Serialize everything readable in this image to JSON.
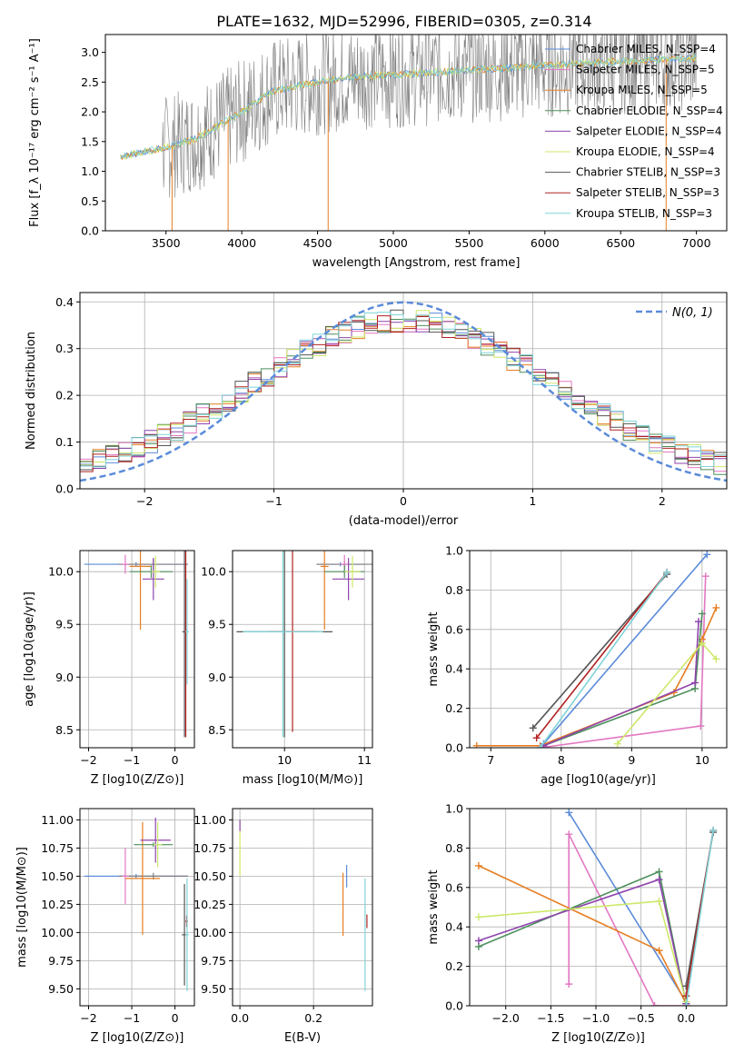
{
  "figure_title": "PLATE=1632, MJD=52996, FIBERID=0305, z=0.314",
  "colors": {
    "grid": "#b0b0b0",
    "gray": "#808080",
    "blue": "#5b8bd9",
    "orange": "#e67e22",
    "green": "#4e8f5d",
    "purple": "#8e44ad",
    "pink": "#e377c2",
    "lime": "#cde86a",
    "darkgray": "#555555",
    "red": "#b22222",
    "cyan": "#7fd3d8"
  },
  "chart_data": [
    {
      "type": "line",
      "name": "spectrum",
      "xlabel": "wavelength [Angstrom, rest frame]",
      "ylabel": "Flux [f_λ 10⁻¹⁷ erg cm⁻² s⁻¹ A⁻¹]",
      "xlim": [
        3100,
        7200
      ],
      "ylim": [
        0,
        3.3
      ],
      "xticks": [
        3500,
        4000,
        4500,
        5000,
        5500,
        6000,
        6500,
        7000
      ],
      "yticks": [
        0.0,
        0.5,
        1.0,
        1.5,
        2.0,
        2.5,
        3.0
      ],
      "data_trend": {
        "x": [
          3200,
          3500,
          3700,
          4000,
          4200,
          4500,
          4800,
          5000,
          5500,
          6000,
          6500,
          7000
        ],
        "y": [
          1.25,
          1.4,
          1.55,
          2.0,
          2.35,
          2.5,
          2.6,
          2.62,
          2.7,
          2.78,
          2.85,
          2.9
        ]
      },
      "legend": [
        {
          "label": "Chabrier MILES, N_SSP=4",
          "color": "blue"
        },
        {
          "label": "Salpeter MILES, N_SSP=5",
          "color": "pink"
        },
        {
          "label": "Kroupa MILES, N_SSP=5",
          "color": "orange"
        },
        {
          "label": "Chabrier ELODIE, N_SSP=4",
          "color": "green"
        },
        {
          "label": "Salpeter ELODIE, N_SSP=4",
          "color": "purple"
        },
        {
          "label": "Kroupa ELODIE, N_SSP=4",
          "color": "lime"
        },
        {
          "label": "Chabrier STELIB, N_SSP=3",
          "color": "darkgray"
        },
        {
          "label": "Salpeter STELIB, N_SSP=3",
          "color": "red"
        },
        {
          "label": "Kroupa STELIB, N_SSP=3",
          "color": "cyan"
        }
      ],
      "legend_position": "right"
    },
    {
      "type": "histogram",
      "name": "residuals",
      "xlabel": "(data-model)/error",
      "ylabel": "Normed distribution",
      "xlim": [
        -2.5,
        2.5
      ],
      "ylim": [
        0,
        0.42
      ],
      "xticks": [
        -2,
        -1,
        0,
        1,
        2
      ],
      "yticks": [
        0.0,
        0.1,
        0.2,
        0.3,
        0.4
      ],
      "legend": [
        {
          "label": "N(0, 1)",
          "style": "dashed",
          "color": "blue"
        }
      ],
      "legend_position": "top-right",
      "bin_width": 0.1,
      "gaussian": {
        "mean": 0,
        "sigma": 1
      }
    },
    {
      "type": "scatter",
      "name": "age-vs-Z",
      "xlabel": "Z [log10(Z/Z⊙)]",
      "ylabel": "age [log10(age/yr)]",
      "xlim": [
        -2.2,
        0.45
      ],
      "ylim": [
        8.33,
        10.2
      ],
      "xticks": [
        -2,
        -1,
        0
      ],
      "yticks": [
        8.5,
        9.0,
        9.5,
        10.0
      ],
      "points": [
        {
          "x": -0.9,
          "y": 10.07,
          "xerr": 1.2,
          "yerr": 0.02,
          "c": "blue"
        },
        {
          "x": -0.5,
          "y": 10.07,
          "xerr": 0.8,
          "yerr": 0.05,
          "c": "gray"
        },
        {
          "x": -1.15,
          "y": 10.07,
          "xerr": 0.08,
          "yerr": 0.09,
          "c": "pink"
        },
        {
          "x": -0.8,
          "y": 10.05,
          "xerr": 0.25,
          "yerr": 0.6,
          "c": "orange"
        },
        {
          "x": -0.55,
          "y": 10.0,
          "xerr": 0.5,
          "yerr": 0.06,
          "c": "green"
        },
        {
          "x": -0.5,
          "y": 9.93,
          "xerr": 0.25,
          "yerr": 0.2,
          "c": "purple"
        },
        {
          "x": -0.45,
          "y": 10.0,
          "xerr": 0.1,
          "yerr": 0.15,
          "c": "lime"
        },
        {
          "x": 0.22,
          "y": 9.43,
          "xerr": 0.05,
          "yerr": 1.0,
          "c": "darkgray"
        },
        {
          "x": 0.25,
          "y": 9.43,
          "xerr": 0.03,
          "yerr": 1.0,
          "c": "red"
        },
        {
          "x": 0.28,
          "y": 9.43,
          "xerr": 0.04,
          "yerr": 0.5,
          "c": "cyan"
        }
      ]
    },
    {
      "type": "scatter",
      "name": "age-vs-mass",
      "xlabel": "mass [log10(M/M⊙)]",
      "ylabel": "",
      "xlim": [
        9.35,
        11.1
      ],
      "ylim": [
        8.33,
        10.2
      ],
      "xticks": [
        10,
        11
      ],
      "yticks": [
        8.5,
        9.0,
        9.5,
        10.0
      ],
      "points": [
        {
          "x": 10.7,
          "y": 10.07,
          "xerr": 0.3,
          "yerr": 0.02,
          "c": "blue"
        },
        {
          "x": 10.75,
          "y": 10.07,
          "xerr": 0.35,
          "yerr": 0.03,
          "c": "gray"
        },
        {
          "x": 10.75,
          "y": 10.07,
          "xerr": 0.05,
          "yerr": 0.09,
          "c": "pink"
        },
        {
          "x": 10.5,
          "y": 10.05,
          "xerr": 0.05,
          "yerr": 0.6,
          "c": "orange"
        },
        {
          "x": 10.75,
          "y": 10.0,
          "xerr": 0.25,
          "yerr": 0.06,
          "c": "green"
        },
        {
          "x": 10.8,
          "y": 9.93,
          "xerr": 0.2,
          "yerr": 0.2,
          "c": "purple"
        },
        {
          "x": 10.85,
          "y": 10.0,
          "xerr": 0.1,
          "yerr": 0.15,
          "c": "lime"
        },
        {
          "x": 10.0,
          "y": 9.43,
          "xerr": 0.6,
          "yerr": 1.0,
          "c": "darkgray"
        },
        {
          "x": 10.1,
          "y": 9.43,
          "xerr": 0.3,
          "yerr": 0.95,
          "c": "red"
        },
        {
          "x": 9.98,
          "y": 9.43,
          "xerr": 0.5,
          "yerr": 1.0,
          "c": "cyan"
        }
      ]
    },
    {
      "type": "line",
      "name": "mass-weight-vs-age",
      "xlabel": "age [log10(age/yr)]",
      "ylabel": "mass weight",
      "xlim": [
        6.7,
        10.35
      ],
      "ylim": [
        0,
        1.0
      ],
      "xticks": [
        7,
        8,
        9,
        10
      ],
      "yticks": [
        0.0,
        0.2,
        0.4,
        0.6,
        0.8,
        1.0
      ],
      "series": [
        {
          "c": "blue",
          "x": [
            7.75,
            10.07
          ],
          "y": [
            0.02,
            0.98
          ]
        },
        {
          "c": "pink",
          "x": [
            7.7,
            9.98,
            10.05
          ],
          "y": [
            0.0,
            0.11,
            0.87
          ]
        },
        {
          "c": "orange",
          "x": [
            6.8,
            7.7,
            9.6,
            10.0,
            10.2
          ],
          "y": [
            0.01,
            0.01,
            0.28,
            0.55,
            0.71
          ]
        },
        {
          "c": "green",
          "x": [
            7.75,
            9.9,
            10.0
          ],
          "y": [
            0.01,
            0.3,
            0.68
          ]
        },
        {
          "c": "purple",
          "x": [
            7.75,
            9.9,
            9.95
          ],
          "y": [
            0.01,
            0.33,
            0.64
          ]
        },
        {
          "c": "lime",
          "x": [
            8.8,
            10.0,
            10.2
          ],
          "y": [
            0.02,
            0.53,
            0.45
          ]
        },
        {
          "c": "darkgray",
          "x": [
            7.6,
            9.5
          ],
          "y": [
            0.1,
            0.88
          ]
        },
        {
          "c": "red",
          "x": [
            7.65,
            9.5
          ],
          "y": [
            0.05,
            0.89
          ]
        },
        {
          "c": "cyan",
          "x": [
            7.7,
            9.5
          ],
          "y": [
            0.0,
            0.89
          ]
        }
      ]
    },
    {
      "type": "scatter",
      "name": "mass-vs-Z",
      "xlabel": "Z [log10(Z/Z⊙)]",
      "ylabel": "mass [log10(M/M⊙)]",
      "xlim": [
        -2.2,
        0.45
      ],
      "ylim": [
        9.35,
        11.1
      ],
      "xticks": [
        -2,
        -1,
        0
      ],
      "yticks": [
        9.5,
        9.75,
        10.0,
        10.25,
        10.5,
        10.75,
        11.0
      ],
      "points": [
        {
          "x": -0.9,
          "y": 10.5,
          "xerr": 1.2,
          "yerr": 0.02,
          "c": "blue"
        },
        {
          "x": -0.5,
          "y": 10.5,
          "xerr": 0.8,
          "yerr": 0.03,
          "c": "gray"
        },
        {
          "x": -1.15,
          "y": 10.5,
          "xerr": 0.08,
          "yerr": 0.25,
          "c": "pink"
        },
        {
          "x": -0.75,
          "y": 10.48,
          "xerr": 0.4,
          "yerr": 0.5,
          "c": "orange"
        },
        {
          "x": -0.5,
          "y": 10.78,
          "xerr": 0.45,
          "yerr": 0.02,
          "c": "green"
        },
        {
          "x": -0.45,
          "y": 10.82,
          "xerr": 0.35,
          "yerr": 0.2,
          "c": "purple"
        },
        {
          "x": -0.4,
          "y": 10.78,
          "xerr": 0.1,
          "yerr": 0.2,
          "c": "lime"
        },
        {
          "x": 0.22,
          "y": 9.98,
          "xerr": 0.06,
          "yerr": 0.45,
          "c": "darkgray"
        },
        {
          "x": 0.27,
          "y": 10.1,
          "xerr": 0.03,
          "yerr": 0.05,
          "c": "red"
        },
        {
          "x": 0.28,
          "y": 9.98,
          "xerr": 0.04,
          "yerr": 0.5,
          "c": "cyan"
        }
      ]
    },
    {
      "type": "scatter",
      "name": "mass-vs-ebv",
      "xlabel": "E(B-V)",
      "ylabel": "",
      "xlim": [
        -0.02,
        0.36
      ],
      "ylim": [
        9.35,
        11.1
      ],
      "xticks": [
        0.0,
        0.2
      ],
      "yticks": [
        9.5,
        9.75,
        10.0,
        10.25,
        10.5,
        10.75,
        11.0
      ],
      "points": [
        {
          "x": 0.0,
          "y": 10.75,
          "xerr": 0.0,
          "yerr": 0.25,
          "c": "lime"
        },
        {
          "x": 0.0,
          "y": 10.95,
          "xerr": 0.0,
          "yerr": 0.05,
          "c": "purple"
        },
        {
          "x": 0.28,
          "y": 10.25,
          "xerr": 0.0,
          "yerr": 0.28,
          "c": "orange"
        },
        {
          "x": 0.29,
          "y": 10.5,
          "xerr": 0.0,
          "yerr": 0.1,
          "c": "blue"
        },
        {
          "x": 0.34,
          "y": 9.98,
          "xerr": 0.0,
          "yerr": 0.5,
          "c": "cyan"
        },
        {
          "x": 0.345,
          "y": 10.1,
          "xerr": 0.0,
          "yerr": 0.06,
          "c": "red"
        }
      ]
    },
    {
      "type": "line",
      "name": "mass-weight-vs-Z",
      "xlabel": "Z [log10(Z/Z⊙)]",
      "ylabel": "mass weight",
      "xlim": [
        -2.4,
        0.45
      ],
      "ylim": [
        0,
        1.0
      ],
      "xticks": [
        -2.0,
        -1.5,
        -1.0,
        -0.5,
        0.0
      ],
      "yticks": [
        0.0,
        0.2,
        0.4,
        0.6,
        0.8,
        1.0
      ],
      "series": [
        {
          "c": "blue",
          "x": [
            -1.3,
            0.0
          ],
          "y": [
            0.98,
            0.02
          ]
        },
        {
          "c": "pink",
          "x": [
            -1.3,
            -1.3,
            -0.35,
            0.0
          ],
          "y": [
            0.11,
            0.87,
            0.0,
            0.0
          ]
        },
        {
          "c": "orange",
          "x": [
            -2.3,
            -0.3,
            0.0
          ],
          "y": [
            0.71,
            0.28,
            0.01
          ]
        },
        {
          "c": "green",
          "x": [
            -2.3,
            -0.3,
            0.0
          ],
          "y": [
            0.3,
            0.68,
            0.01
          ]
        },
        {
          "c": "purple",
          "x": [
            -2.3,
            -0.3,
            0.0
          ],
          "y": [
            0.33,
            0.64,
            0.01
          ]
        },
        {
          "c": "lime",
          "x": [
            -2.3,
            -0.3,
            0.0
          ],
          "y": [
            0.45,
            0.53,
            0.02
          ]
        },
        {
          "c": "darkgray",
          "x": [
            0.0,
            0.3
          ],
          "y": [
            0.1,
            0.88
          ]
        },
        {
          "c": "red",
          "x": [
            0.0,
            0.3
          ],
          "y": [
            0.05,
            0.89
          ]
        },
        {
          "c": "cyan",
          "x": [
            0.0,
            0.3
          ],
          "y": [
            0.0,
            0.89
          ]
        }
      ]
    }
  ]
}
